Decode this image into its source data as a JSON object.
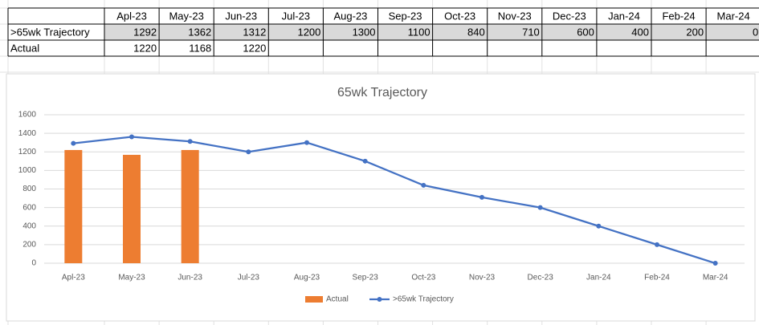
{
  "table": {
    "header": [
      "Apl-23",
      "May-23",
      "Jun-23",
      "Jul-23",
      "Aug-23",
      "Sep-23",
      "Oct-23",
      "Nov-23",
      "Dec-23",
      "Jan-24",
      "Feb-24",
      "Mar-24"
    ],
    "rows": [
      [
        ">65wk Trajectory",
        1292,
        1362,
        1312,
        1200,
        1300,
        1100,
        840,
        710,
        600,
        400,
        200,
        0
      ],
      [
        "Actual",
        1220,
        1168,
        1220
      ]
    ]
  },
  "chart_data": {
    "type": "combo",
    "title": "65wk Trajectory",
    "categories": [
      "Apl-23",
      "May-23",
      "Jun-23",
      "Jul-23",
      "Aug-23",
      "Sep-23",
      "Oct-23",
      "Nov-23",
      "Dec-23",
      "Jan-24",
      "Feb-24",
      "Mar-24"
    ],
    "series": [
      {
        "name": "Actual",
        "type": "bar",
        "color": "#ed7d31",
        "values": [
          1220,
          1168,
          1220,
          null,
          null,
          null,
          null,
          null,
          null,
          null,
          null,
          null
        ]
      },
      {
        "name": ">65wk Trajectory",
        "type": "line",
        "color": "#4472c4",
        "values": [
          1292,
          1362,
          1312,
          1200,
          1300,
          1100,
          840,
          710,
          600,
          400,
          200,
          0
        ]
      }
    ],
    "ylim": [
      0,
      1600
    ],
    "yticks": [
      0,
      200,
      400,
      600,
      800,
      1000,
      1200,
      1400,
      1600
    ],
    "grid": true,
    "legend": "bottom"
  }
}
